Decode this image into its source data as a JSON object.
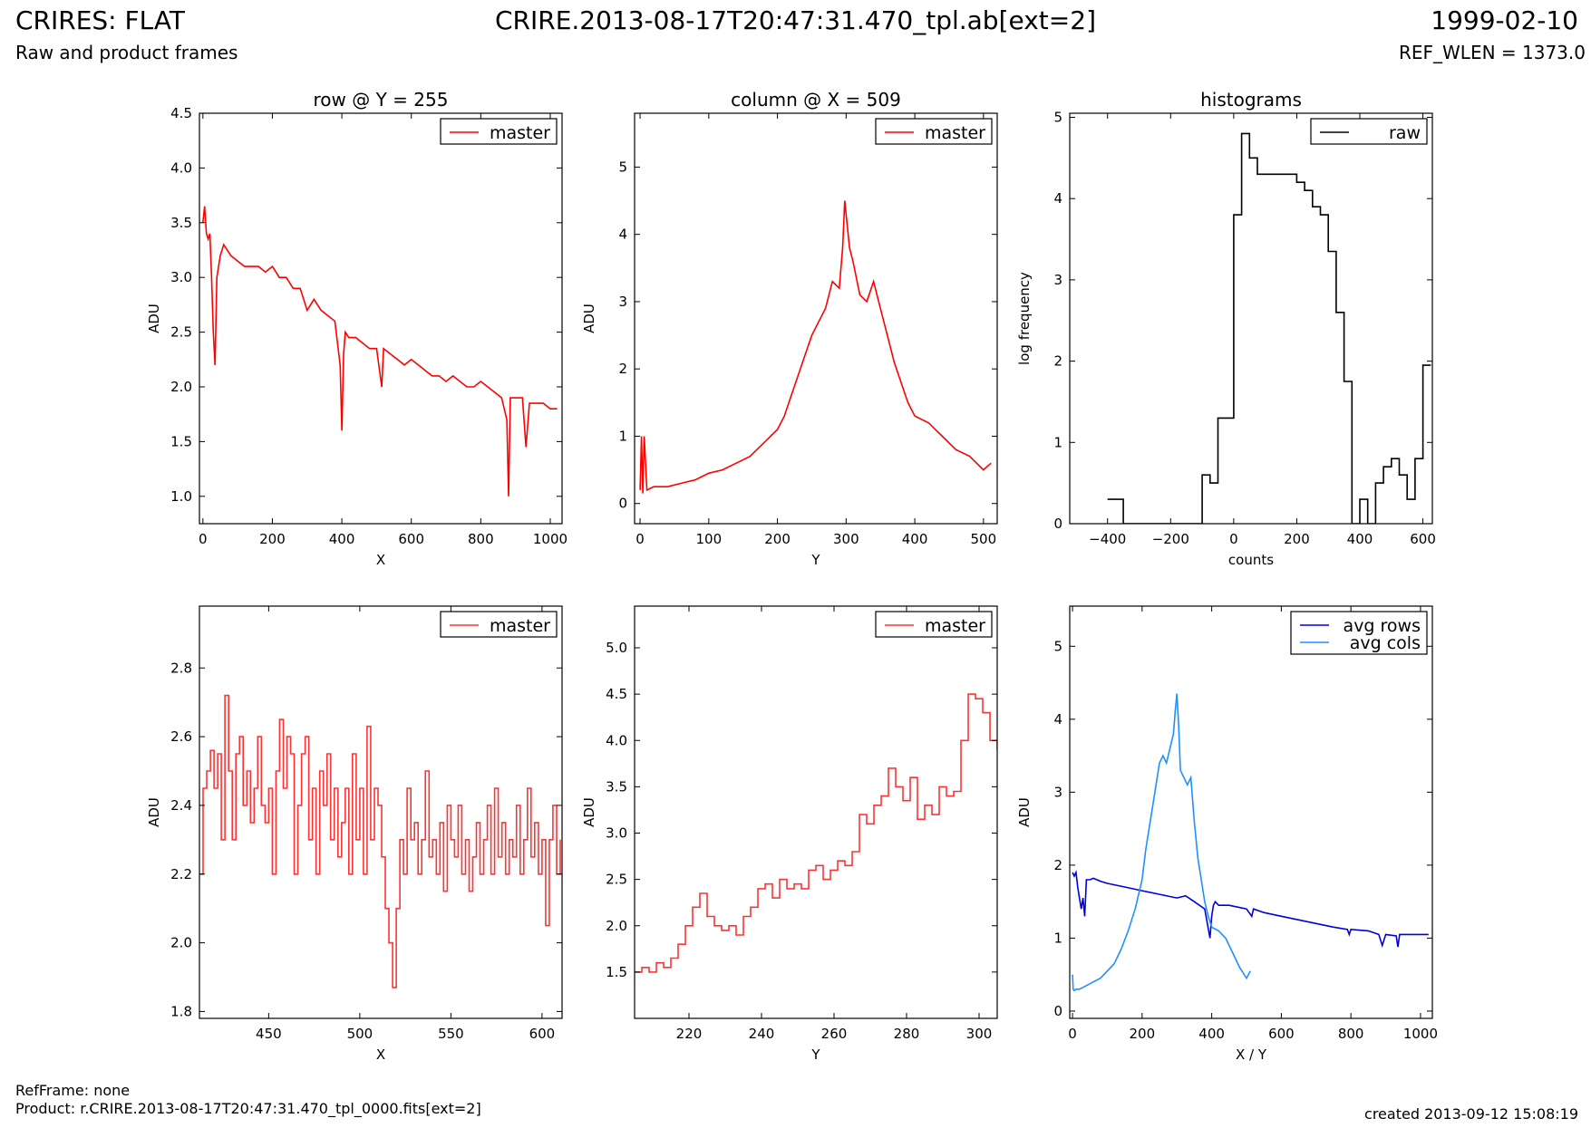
{
  "header": {
    "title_left": "CRIRES: FLAT",
    "title_center": "CRIRE.2013-08-17T20:47:31.470_tpl.ab[ext=2]",
    "title_right": "1999-02-10",
    "subtitle_left": "Raw and product frames",
    "subtitle_right": "REF_WLEN = 1373.0"
  },
  "footer": {
    "refframe": "RefFrame: none",
    "product": "Product: r.CRIRE.2013-08-17T20:47:31.470_tpl_0000.fits[ext=2]",
    "created": "created 2013-09-12 15:08:19"
  },
  "colors": {
    "red": "#ff0000",
    "black": "#000000",
    "dark_blue": "#0000dd",
    "light_blue": "#1e90ff"
  },
  "chart_data": [
    {
      "type": "line",
      "title": "row @ Y = 255",
      "xlabel": "X",
      "ylabel": "ADU",
      "xlim": [
        -10,
        1034
      ],
      "ylim": [
        0.75,
        4.5
      ],
      "xticks": [
        0,
        200,
        400,
        600,
        800,
        1000
      ],
      "yticks": [
        1.0,
        1.5,
        2.0,
        2.5,
        3.0,
        3.5,
        4.0,
        4.5
      ],
      "ytick_labels": [
        "1.0",
        "1.5",
        "2.0",
        "2.5",
        "3.0",
        "3.5",
        "4.0",
        "4.5"
      ],
      "legend": "top-right",
      "series": [
        {
          "name": "master",
          "color": "#ff0000",
          "style": "line",
          "x": [
            0,
            5,
            10,
            15,
            20,
            25,
            30,
            35,
            40,
            50,
            60,
            80,
            100,
            120,
            140,
            160,
            180,
            200,
            220,
            240,
            260,
            280,
            300,
            320,
            340,
            360,
            380,
            395,
            400,
            405,
            410,
            420,
            440,
            460,
            480,
            500,
            515,
            520,
            540,
            560,
            580,
            600,
            620,
            640,
            660,
            680,
            700,
            720,
            740,
            760,
            780,
            800,
            820,
            840,
            860,
            875,
            880,
            885,
            900,
            920,
            930,
            940,
            960,
            980,
            1000,
            1020
          ],
          "y": [
            3.5,
            3.65,
            3.4,
            3.35,
            3.4,
            3.0,
            2.5,
            2.2,
            3.0,
            3.2,
            3.3,
            3.2,
            3.15,
            3.1,
            3.1,
            3.1,
            3.05,
            3.1,
            3.0,
            3.0,
            2.9,
            2.9,
            2.7,
            2.8,
            2.7,
            2.65,
            2.6,
            2.2,
            1.6,
            2.3,
            2.5,
            2.45,
            2.45,
            2.4,
            2.35,
            2.35,
            2.0,
            2.35,
            2.3,
            2.25,
            2.2,
            2.25,
            2.2,
            2.15,
            2.1,
            2.1,
            2.05,
            2.1,
            2.05,
            2.0,
            2.0,
            2.05,
            2.0,
            1.95,
            1.9,
            1.7,
            1.0,
            1.9,
            1.9,
            1.9,
            1.45,
            1.85,
            1.85,
            1.85,
            1.8,
            1.8
          ]
        }
      ]
    },
    {
      "type": "line",
      "title": "column @ X = 509",
      "xlabel": "Y",
      "ylabel": "ADU",
      "xlim": [
        -8,
        520
      ],
      "ylim": [
        -0.3,
        5.8
      ],
      "xticks": [
        0,
        100,
        200,
        300,
        400,
        500
      ],
      "yticks": [
        0,
        1,
        2,
        3,
        4,
        5
      ],
      "ytick_labels": [
        "0",
        "1",
        "2",
        "3",
        "4",
        "5"
      ],
      "legend": "top-right",
      "series": [
        {
          "name": "master",
          "color": "#ff0000",
          "style": "line",
          "x": [
            0,
            2,
            4,
            6,
            10,
            20,
            40,
            60,
            80,
            100,
            120,
            140,
            160,
            180,
            200,
            210,
            220,
            230,
            240,
            250,
            260,
            270,
            280,
            290,
            295,
            298,
            300,
            305,
            310,
            320,
            330,
            340,
            350,
            360,
            370,
            380,
            390,
            400,
            420,
            440,
            460,
            480,
            500,
            511
          ],
          "y": [
            0.2,
            1.0,
            0.15,
            1.0,
            0.2,
            0.25,
            0.25,
            0.3,
            0.35,
            0.45,
            0.5,
            0.6,
            0.7,
            0.9,
            1.1,
            1.3,
            1.6,
            1.9,
            2.2,
            2.5,
            2.7,
            2.9,
            3.3,
            3.2,
            3.8,
            4.5,
            4.3,
            3.8,
            3.6,
            3.1,
            3.0,
            3.3,
            2.9,
            2.5,
            2.1,
            1.8,
            1.5,
            1.3,
            1.2,
            1.0,
            0.8,
            0.7,
            0.5,
            0.6
          ]
        }
      ]
    },
    {
      "type": "line",
      "title": "histograms",
      "xlabel": "counts",
      "ylabel": "log frequency",
      "xlim": [
        -520,
        630
      ],
      "ylim": [
        0,
        5.05
      ],
      "xticks": [
        -400,
        -200,
        0,
        200,
        400,
        600
      ],
      "xtick_labels": [
        "−400",
        "−200",
        "0",
        "200",
        "400",
        "600"
      ],
      "yticks": [
        0,
        1,
        2,
        3,
        4,
        5
      ],
      "ytick_labels": [
        "0",
        "1",
        "2",
        "3",
        "4",
        "5"
      ],
      "legend": "top-right",
      "series": [
        {
          "name": "raw",
          "color": "#000000",
          "style": "step",
          "x": [
            -400,
            -375,
            -350,
            -125,
            -100,
            -75,
            -50,
            -25,
            0,
            25,
            50,
            75,
            100,
            125,
            150,
            175,
            200,
            225,
            250,
            275,
            300,
            325,
            350,
            375,
            400,
            425,
            450,
            475,
            500,
            525,
            550,
            575,
            600,
            625
          ],
          "y": [
            0.3,
            0.3,
            0,
            0,
            0.6,
            0.5,
            1.3,
            1.3,
            3.8,
            4.8,
            4.5,
            4.3,
            4.3,
            4.3,
            4.3,
            4.3,
            4.2,
            4.1,
            3.9,
            3.8,
            3.35,
            2.6,
            1.75,
            0,
            0.3,
            0,
            0.5,
            0.7,
            0.8,
            0.6,
            0.3,
            0.8,
            1.95,
            1.95
          ]
        }
      ]
    },
    {
      "type": "line",
      "title": "",
      "xlabel": "X",
      "ylabel": "ADU",
      "xlim": [
        412,
        611
      ],
      "ylim": [
        1.78,
        2.98
      ],
      "xticks": [
        450,
        500,
        550,
        600
      ],
      "yticks": [
        1.8,
        2.0,
        2.2,
        2.4,
        2.6,
        2.8
      ],
      "ytick_labels": [
        "1.8",
        "2.0",
        "2.2",
        "2.4",
        "2.6",
        "2.8"
      ],
      "legend": "top-right",
      "series": [
        {
          "name": "master",
          "color": "#ff3333",
          "style": "step",
          "x": [
            412,
            414,
            416,
            418,
            420,
            422,
            424,
            426,
            428,
            430,
            432,
            434,
            436,
            438,
            440,
            442,
            444,
            446,
            448,
            450,
            452,
            454,
            456,
            458,
            460,
            462,
            464,
            466,
            468,
            470,
            472,
            474,
            476,
            478,
            480,
            482,
            484,
            486,
            488,
            490,
            492,
            494,
            496,
            498,
            500,
            502,
            504,
            506,
            508,
            510,
            512,
            514,
            516,
            518,
            520,
            522,
            524,
            526,
            528,
            530,
            532,
            534,
            536,
            538,
            540,
            542,
            544,
            546,
            548,
            550,
            552,
            554,
            556,
            558,
            560,
            562,
            564,
            566,
            568,
            570,
            572,
            574,
            576,
            578,
            580,
            582,
            584,
            586,
            588,
            590,
            592,
            594,
            596,
            598,
            600,
            602,
            604,
            606,
            608,
            610
          ],
          "y": [
            2.2,
            2.45,
            2.5,
            2.56,
            2.45,
            2.55,
            2.3,
            2.72,
            2.5,
            2.3,
            2.55,
            2.6,
            2.4,
            2.5,
            2.35,
            2.45,
            2.6,
            2.4,
            2.35,
            2.45,
            2.2,
            2.5,
            2.65,
            2.45,
            2.6,
            2.55,
            2.2,
            2.4,
            2.55,
            2.6,
            2.3,
            2.45,
            2.2,
            2.5,
            2.4,
            2.55,
            2.3,
            2.45,
            2.25,
            2.35,
            2.45,
            2.2,
            2.55,
            2.3,
            2.45,
            2.2,
            2.63,
            2.3,
            2.45,
            2.4,
            2.25,
            2.1,
            2.0,
            1.87,
            2.1,
            2.3,
            2.2,
            2.45,
            2.3,
            2.35,
            2.2,
            2.3,
            2.5,
            2.25,
            2.3,
            2.2,
            2.35,
            2.15,
            2.4,
            2.3,
            2.25,
            2.4,
            2.2,
            2.3,
            2.15,
            2.25,
            2.35,
            2.2,
            2.3,
            2.4,
            2.2,
            2.45,
            2.25,
            2.35,
            2.2,
            2.3,
            2.25,
            2.4,
            2.2,
            2.3,
            2.45,
            2.25,
            2.35,
            2.2,
            2.3,
            2.05,
            2.3,
            2.4,
            2.2,
            2.3
          ]
        }
      ]
    },
    {
      "type": "line",
      "title": "",
      "xlabel": "Y",
      "ylabel": "ADU",
      "xlim": [
        205,
        305
      ],
      "ylim": [
        1.0,
        5.45
      ],
      "xticks": [
        220,
        240,
        260,
        280,
        300
      ],
      "yticks": [
        1.5,
        2.0,
        2.5,
        3.0,
        3.5,
        4.0,
        4.5,
        5.0
      ],
      "ytick_labels": [
        "1.5",
        "2.0",
        "2.5",
        "3.0",
        "3.5",
        "4.0",
        "4.5",
        "5.0"
      ],
      "legend": "top-right",
      "series": [
        {
          "name": "master",
          "color": "#ff3333",
          "style": "step",
          "x": [
            205,
            207,
            209,
            211,
            213,
            215,
            217,
            219,
            221,
            223,
            225,
            227,
            229,
            231,
            233,
            235,
            237,
            239,
            241,
            243,
            245,
            247,
            249,
            251,
            253,
            255,
            257,
            259,
            261,
            263,
            265,
            267,
            269,
            271,
            273,
            275,
            277,
            279,
            281,
            283,
            285,
            287,
            289,
            291,
            293,
            295,
            297,
            299,
            301,
            303,
            305
          ],
          "y": [
            1.5,
            1.55,
            1.5,
            1.6,
            1.55,
            1.65,
            1.8,
            2.0,
            2.2,
            2.35,
            2.1,
            2.0,
            1.95,
            2.0,
            1.9,
            2.1,
            2.2,
            2.4,
            2.45,
            2.3,
            2.5,
            2.4,
            2.45,
            2.4,
            2.6,
            2.65,
            2.5,
            2.6,
            2.7,
            2.65,
            2.8,
            3.2,
            3.1,
            3.3,
            3.4,
            3.7,
            3.5,
            3.35,
            3.6,
            3.15,
            3.3,
            3.2,
            3.5,
            3.4,
            3.45,
            4.0,
            4.5,
            4.45,
            4.3,
            4.0,
            3.9
          ]
        }
      ]
    },
    {
      "type": "line",
      "title": "",
      "xlabel": "X / Y",
      "ylabel": "ADU",
      "xlim": [
        -8,
        1034
      ],
      "ylim": [
        -0.1,
        5.55
      ],
      "xticks": [
        0,
        200,
        400,
        600,
        800,
        1000
      ],
      "yticks": [
        0,
        1,
        2,
        3,
        4,
        5
      ],
      "ytick_labels": [
        "0",
        "1",
        "2",
        "3",
        "4",
        "5"
      ],
      "legend": "top-right",
      "series": [
        {
          "name": "avg rows",
          "color": "#0000dd",
          "style": "line",
          "x": [
            0,
            5,
            10,
            15,
            20,
            25,
            30,
            35,
            40,
            50,
            60,
            80,
            100,
            150,
            200,
            250,
            300,
            325,
            350,
            380,
            395,
            400,
            405,
            410,
            420,
            450,
            500,
            515,
            520,
            550,
            600,
            650,
            700,
            750,
            790,
            795,
            800,
            850,
            880,
            890,
            900,
            930,
            935,
            940,
            1000,
            1023
          ],
          "y": [
            1.9,
            1.85,
            1.9,
            1.7,
            1.55,
            1.4,
            1.55,
            1.3,
            1.8,
            1.8,
            1.82,
            1.78,
            1.75,
            1.7,
            1.65,
            1.6,
            1.55,
            1.58,
            1.5,
            1.4,
            1.0,
            1.3,
            1.45,
            1.5,
            1.45,
            1.45,
            1.4,
            1.3,
            1.4,
            1.35,
            1.3,
            1.25,
            1.2,
            1.15,
            1.12,
            1.05,
            1.12,
            1.1,
            1.05,
            0.9,
            1.05,
            1.03,
            0.88,
            1.05,
            1.05,
            1.05
          ]
        },
        {
          "name": "avg cols",
          "color": "#1e90ff",
          "style": "line",
          "x": [
            0,
            2,
            5,
            10,
            20,
            40,
            60,
            80,
            100,
            120,
            140,
            160,
            180,
            200,
            210,
            220,
            230,
            240,
            250,
            260,
            270,
            280,
            290,
            295,
            300,
            305,
            310,
            320,
            330,
            340,
            350,
            360,
            370,
            380,
            390,
            400,
            420,
            440,
            460,
            480,
            500,
            511
          ],
          "y": [
            0.5,
            0.3,
            0.28,
            0.3,
            0.3,
            0.35,
            0.4,
            0.45,
            0.55,
            0.65,
            0.85,
            1.1,
            1.4,
            1.8,
            2.2,
            2.5,
            2.8,
            3.1,
            3.4,
            3.5,
            3.4,
            3.6,
            3.8,
            4.1,
            4.35,
            3.9,
            3.3,
            3.2,
            3.1,
            3.2,
            2.6,
            2.1,
            1.8,
            1.5,
            1.3,
            1.15,
            1.1,
            1.0,
            0.8,
            0.6,
            0.45,
            0.55
          ]
        }
      ]
    }
  ]
}
